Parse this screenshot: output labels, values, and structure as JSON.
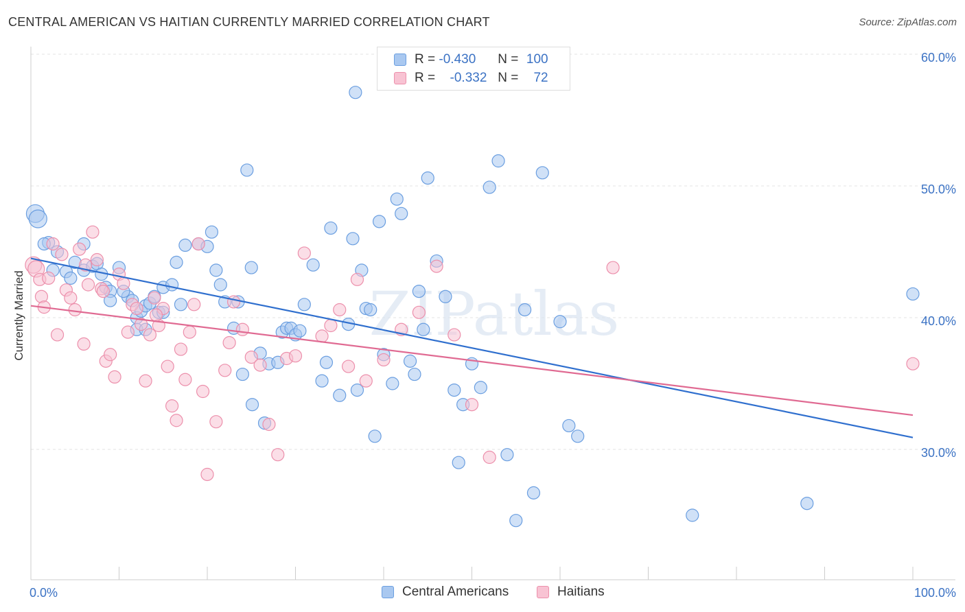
{
  "title": "CENTRAL AMERICAN VS HAITIAN CURRENTLY MARRIED CORRELATION CHART",
  "source": "Source: ZipAtlas.com",
  "watermark": "ZIPatlas",
  "legend": {
    "rows": [
      {
        "r_label": "R =",
        "r_value": "-0.430",
        "n_label": "N =",
        "n_value": "100",
        "color": "#a9c8f0",
        "border": "#6a9ee0"
      },
      {
        "r_label": "R =",
        "r_value": "-0.332",
        "n_label": "N =",
        "n_value": "72",
        "color": "#f8c3d3",
        "border": "#ec8fab"
      }
    ]
  },
  "chart_data": {
    "type": "scatter",
    "title": "CENTRAL AMERICAN VS HAITIAN CURRENTLY MARRIED CORRELATION CHART",
    "xlabel": "",
    "ylabel": "Currently Married",
    "xlim": [
      0,
      100
    ],
    "ylim": [
      20,
      62
    ],
    "x_tick_labels": [
      "0.0%",
      "100.0%"
    ],
    "y_ticks": [
      30,
      40,
      50,
      60
    ],
    "y_tick_labels": [
      "30.0%",
      "40.0%",
      "50.0%",
      "60.0%"
    ],
    "grid": true,
    "series": [
      {
        "name": "Central Americans",
        "color": "#a9c8f0",
        "stroke": "#6a9ee0",
        "line_color": "#2f6fce",
        "trend": {
          "x": [
            0,
            100
          ],
          "y": [
            44.5,
            30.9
          ]
        },
        "points": [
          [
            0.5,
            47.9
          ],
          [
            0.8,
            47.5
          ],
          [
            2,
            45.7
          ],
          [
            1.5,
            45.6
          ],
          [
            3,
            45.0
          ],
          [
            2.5,
            43.6
          ],
          [
            4,
            43.5
          ],
          [
            4.5,
            43.0
          ],
          [
            5,
            44.2
          ],
          [
            6,
            43.6
          ],
          [
            7,
            43.9
          ],
          [
            7.5,
            44.1
          ],
          [
            8,
            43.3
          ],
          [
            8.5,
            42.3
          ],
          [
            9,
            42.0
          ],
          [
            10,
            43.8
          ],
          [
            11,
            41.6
          ],
          [
            11.5,
            41.3
          ],
          [
            12,
            40.0
          ],
          [
            12.5,
            40.5
          ],
          [
            13,
            40.9
          ],
          [
            13.5,
            41.1
          ],
          [
            14,
            41.6
          ],
          [
            14.5,
            40.4
          ],
          [
            15,
            42.3
          ],
          [
            16,
            42.5
          ],
          [
            16.5,
            44.2
          ],
          [
            6,
            45.6
          ],
          [
            9,
            41.3
          ],
          [
            10.5,
            42.0
          ],
          [
            12,
            39.1
          ],
          [
            13,
            39.1
          ],
          [
            15,
            40.4
          ],
          [
            17,
            41.0
          ],
          [
            17.5,
            45.5
          ],
          [
            19,
            45.6
          ],
          [
            20,
            45.4
          ],
          [
            20.5,
            46.5
          ],
          [
            21,
            43.6
          ],
          [
            21.5,
            42.5
          ],
          [
            22,
            41.2
          ],
          [
            23,
            39.2
          ],
          [
            23.5,
            41.2
          ],
          [
            24,
            35.7
          ],
          [
            24.5,
            51.2
          ],
          [
            25,
            43.8
          ],
          [
            26,
            37.3
          ],
          [
            26.5,
            32.0
          ],
          [
            27,
            36.5
          ],
          [
            28,
            36.6
          ],
          [
            28.5,
            38.9
          ],
          [
            29,
            39.2
          ],
          [
            29.5,
            39.2
          ],
          [
            30,
            38.7
          ],
          [
            30.5,
            39.0
          ],
          [
            31,
            41.0
          ],
          [
            32,
            44.0
          ],
          [
            33,
            35.2
          ],
          [
            33.5,
            36.6
          ],
          [
            34,
            46.8
          ],
          [
            35,
            34.1
          ],
          [
            36,
            39.5
          ],
          [
            36.5,
            46.0
          ],
          [
            37,
            34.5
          ],
          [
            37.5,
            43.6
          ],
          [
            38,
            40.7
          ],
          [
            39,
            31.0
          ],
          [
            39.5,
            47.3
          ],
          [
            40,
            37.2
          ],
          [
            41,
            35.0
          ],
          [
            41.5,
            49.0
          ],
          [
            42,
            47.9
          ],
          [
            43,
            36.7
          ],
          [
            43.5,
            35.7
          ],
          [
            44,
            42.0
          ],
          [
            45,
            50.6
          ],
          [
            46,
            44.3
          ],
          [
            47,
            41.6
          ],
          [
            48,
            34.5
          ],
          [
            48.5,
            29.0
          ],
          [
            49,
            33.4
          ],
          [
            50,
            36.5
          ],
          [
            51,
            34.7
          ],
          [
            52,
            49.9
          ],
          [
            53,
            51.9
          ],
          [
            54,
            29.6
          ],
          [
            55,
            24.6
          ],
          [
            56,
            40.6
          ],
          [
            57,
            26.7
          ],
          [
            58,
            51.0
          ],
          [
            60,
            39.7
          ],
          [
            61,
            31.8
          ],
          [
            62,
            31.0
          ],
          [
            75,
            25.0
          ],
          [
            88,
            25.9
          ],
          [
            100,
            41.8
          ],
          [
            36.8,
            57.1
          ],
          [
            25.1,
            33.4
          ],
          [
            38.5,
            40.6
          ],
          [
            44.5,
            39.1
          ]
        ]
      },
      {
        "name": "Haitians",
        "color": "#f8c3d3",
        "stroke": "#ec8fab",
        "line_color": "#e06a92",
        "trend": {
          "x": [
            0,
            100
          ],
          "y": [
            40.9,
            32.6
          ]
        },
        "points": [
          [
            0.3,
            44.0
          ],
          [
            0.6,
            43.7
          ],
          [
            1,
            42.9
          ],
          [
            1.2,
            41.6
          ],
          [
            1.5,
            40.8
          ],
          [
            2,
            43.0
          ],
          [
            2.5,
            45.6
          ],
          [
            3,
            38.7
          ],
          [
            3.5,
            44.8
          ],
          [
            4,
            42.1
          ],
          [
            4.5,
            41.5
          ],
          [
            5,
            40.6
          ],
          [
            5.5,
            45.2
          ],
          [
            6,
            38.0
          ],
          [
            6.5,
            42.5
          ],
          [
            7,
            46.5
          ],
          [
            7.5,
            44.4
          ],
          [
            8,
            42.2
          ],
          [
            8.5,
            36.7
          ],
          [
            9,
            37.2
          ],
          [
            9.5,
            35.5
          ],
          [
            10,
            43.3
          ],
          [
            10.5,
            42.6
          ],
          [
            11,
            38.9
          ],
          [
            11.5,
            41.0
          ],
          [
            12,
            40.7
          ],
          [
            12.5,
            39.5
          ],
          [
            13,
            35.2
          ],
          [
            13.5,
            38.7
          ],
          [
            14,
            41.5
          ],
          [
            14.5,
            39.4
          ],
          [
            15,
            40.7
          ],
          [
            15.5,
            36.3
          ],
          [
            16,
            33.3
          ],
          [
            16.5,
            32.2
          ],
          [
            17,
            37.6
          ],
          [
            17.5,
            35.3
          ],
          [
            18,
            38.9
          ],
          [
            18.5,
            41.0
          ],
          [
            19,
            45.6
          ],
          [
            19.5,
            34.4
          ],
          [
            20,
            28.1
          ],
          [
            21,
            32.1
          ],
          [
            22,
            36.0
          ],
          [
            22.5,
            38.1
          ],
          [
            23,
            41.2
          ],
          [
            24,
            39.1
          ],
          [
            25,
            37.0
          ],
          [
            26,
            36.4
          ],
          [
            27,
            31.9
          ],
          [
            28,
            29.6
          ],
          [
            29,
            36.9
          ],
          [
            30,
            37.1
          ],
          [
            31,
            44.9
          ],
          [
            33,
            38.6
          ],
          [
            34,
            39.4
          ],
          [
            35,
            40.6
          ],
          [
            36,
            36.3
          ],
          [
            37,
            42.9
          ],
          [
            38,
            35.2
          ],
          [
            40,
            36.8
          ],
          [
            42,
            39.1
          ],
          [
            44,
            40.4
          ],
          [
            46,
            43.9
          ],
          [
            48,
            38.7
          ],
          [
            50,
            33.4
          ],
          [
            52,
            29.4
          ],
          [
            8.2,
            42.0
          ],
          [
            6.2,
            44.0
          ],
          [
            14.2,
            40.2
          ],
          [
            66,
            43.8
          ],
          [
            100,
            36.5
          ]
        ]
      }
    ]
  },
  "bottom_legend": {
    "items": [
      "Central Americans",
      "Haitians"
    ]
  }
}
